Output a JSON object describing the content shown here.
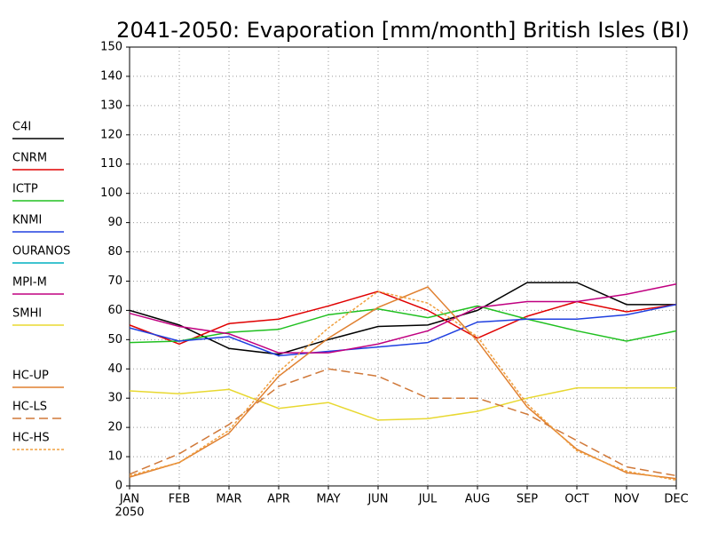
{
  "chart_data": {
    "type": "line",
    "title": "2041-2050: Evaporation [mm/month] British Isles (BI)",
    "categories": [
      "JAN",
      "FEB",
      "MAR",
      "APR",
      "MAY",
      "JUN",
      "JUL",
      "AUG",
      "SEP",
      "OCT",
      "NOV",
      "DEC"
    ],
    "year_label": "2050",
    "ylim": [
      0,
      150
    ],
    "yticks": [
      0,
      10,
      20,
      30,
      40,
      50,
      60,
      70,
      80,
      90,
      100,
      110,
      120,
      130,
      140,
      150
    ],
    "grid": true,
    "legend": "left",
    "series": [
      {
        "name": "C4I",
        "color": "#000000",
        "dash": "solid",
        "values": [
          60,
          55,
          47,
          45,
          50,
          54.5,
          55,
          60,
          69.5,
          69.5,
          62,
          62
        ]
      },
      {
        "name": "CNRM",
        "color": "#e00000",
        "dash": "solid",
        "values": [
          55,
          48.5,
          55.5,
          57,
          61.5,
          66.5,
          60,
          50.5,
          58,
          63,
          59.5,
          62
        ]
      },
      {
        "name": "ICTP",
        "color": "#20c020",
        "dash": "solid",
        "values": [
          49,
          49.5,
          52.5,
          53.5,
          58.5,
          60.5,
          57.5,
          61.5,
          57,
          53,
          49.5,
          53
        ]
      },
      {
        "name": "KNMI",
        "color": "#2040e0",
        "dash": "solid",
        "values": [
          54,
          49.5,
          51,
          44.5,
          46,
          47.5,
          49,
          56,
          57,
          57,
          58.5,
          62
        ]
      },
      {
        "name": "OURANOS",
        "color": "#00b0c0",
        "dash": "solid",
        "values": [
          null,
          null,
          null,
          null,
          null,
          null,
          null,
          null,
          null,
          null,
          null,
          null
        ]
      },
      {
        "name": "MPI-M",
        "color": "#c00080",
        "dash": "solid",
        "values": [
          59,
          54.5,
          52,
          45.5,
          45.5,
          48.5,
          53,
          61,
          63,
          63,
          65.5,
          69
        ]
      },
      {
        "name": "SMHI",
        "color": "#e8d830",
        "dash": "solid",
        "values": [
          32.5,
          31.5,
          33,
          26.5,
          28.5,
          22.5,
          23,
          25.5,
          30,
          33.5,
          33.5,
          33.5
        ]
      },
      {
        "name": "HC-UP",
        "color": "#e08030",
        "dash": "solid",
        "values": [
          3,
          8,
          18,
          37.5,
          50.5,
          61,
          68,
          49.5,
          27,
          12.5,
          4.5,
          2.5
        ]
      },
      {
        "name": "HC-LS",
        "color": "#d07838",
        "dash": "dashed",
        "values": [
          4,
          11,
          21,
          34,
          40,
          37.5,
          30,
          30,
          24.5,
          15.5,
          6.5,
          3.5
        ]
      },
      {
        "name": "HC-HS",
        "color": "#f0a040",
        "dash": "dotted",
        "values": [
          3.5,
          8,
          19,
          39,
          54,
          66.5,
          62.5,
          51,
          28,
          12,
          5,
          2
        ]
      }
    ]
  }
}
